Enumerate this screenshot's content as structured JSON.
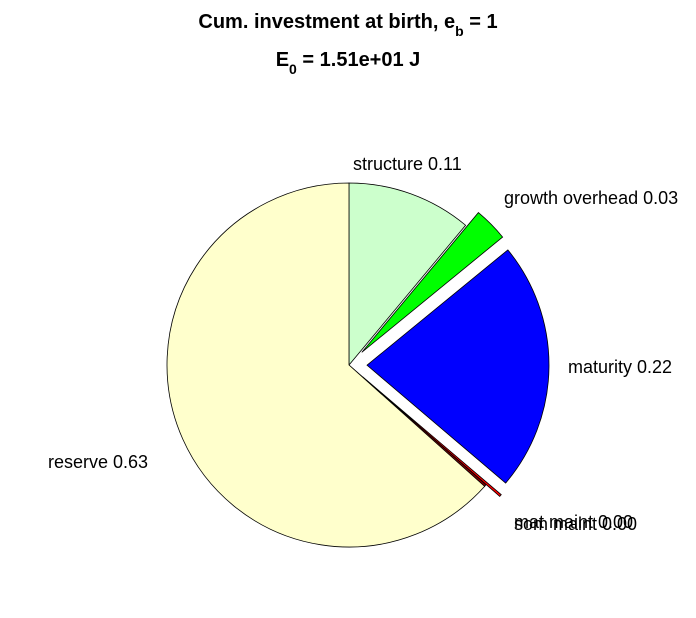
{
  "chart_data": {
    "type": "pie",
    "title": {
      "line1_prefix": "Cum. investment at birth, e",
      "line1_sub": "b",
      "line1_suffix": " = 1",
      "line2_prefix": "E",
      "line2_sub": "0",
      "line2_suffix": " = 1.51e+01 J"
    },
    "slices": [
      {
        "key": "structure",
        "label": "structure 0.11",
        "value": 0.11,
        "color": "#CCFFCC",
        "exploded": false
      },
      {
        "key": "growth-overhead",
        "label": "growth overhead 0.03",
        "value": 0.03,
        "color": "#00FF00",
        "exploded": true
      },
      {
        "key": "maturity",
        "label": "maturity 0.22",
        "value": 0.22,
        "color": "#0000FF",
        "exploded": true
      },
      {
        "key": "mat-maint",
        "label": "mat maint 0.00",
        "value": 0.002,
        "color": "#FF0000",
        "exploded": true
      },
      {
        "key": "som-maint",
        "label": "som maint 0.00",
        "value": 0.002,
        "color": "#800000",
        "exploded": false
      },
      {
        "key": "reserve",
        "label": "reserve 0.63",
        "value": 0.63,
        "color": "#FFFFCC",
        "exploded": false
      }
    ]
  }
}
